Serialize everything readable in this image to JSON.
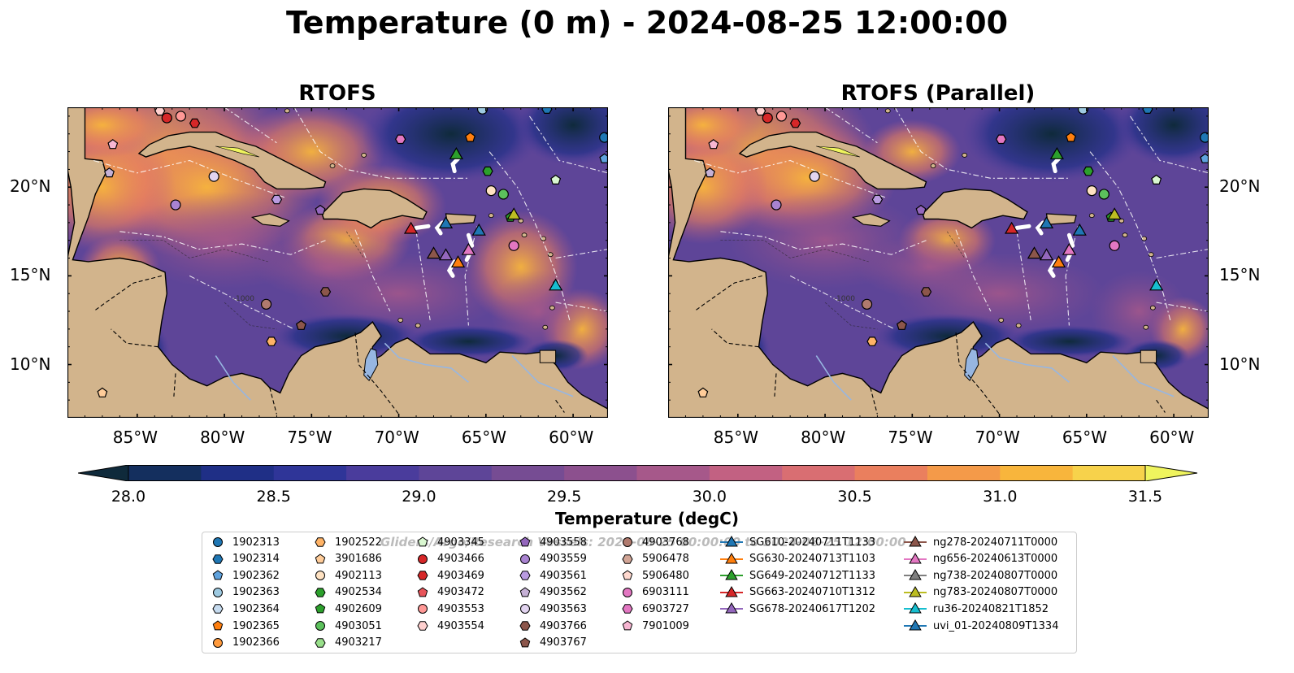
{
  "title": "Temperature (0 m) - 2024-08-25 12:00:00",
  "panels": [
    {
      "title": "RTOFS"
    },
    {
      "title": "RTOFS (Parallel)"
    }
  ],
  "axes": {
    "lon_ticks": [
      "85°W",
      "80°W",
      "75°W",
      "70°W",
      "65°W",
      "60°W"
    ],
    "lat_ticks": [
      "20°N",
      "15°N",
      "10°N"
    ],
    "extent": {
      "lon_min": -89,
      "lon_max": -58,
      "lat_min": 7,
      "lat_max": 24.5
    }
  },
  "colorbar": {
    "label": "Temperature (degC)",
    "ticks": [
      "28.0",
      "28.5",
      "29.0",
      "29.5",
      "30.0",
      "30.5",
      "31.0",
      "31.5"
    ],
    "min": 28.0,
    "max": 31.5,
    "extend": "both",
    "colors": [
      "#0f2a3b",
      "#142f5e",
      "#1f2f86",
      "#2f3598",
      "#4a3c9c",
      "#5e4598",
      "#764c93",
      "#8c508e",
      "#a6588a",
      "#c26182",
      "#d96e72",
      "#ea7f5e",
      "#f49a49",
      "#f8b53c",
      "#f7d24b",
      "#eff45e"
    ],
    "contour_label": "-1000"
  },
  "legend": {
    "watermark": "Gliders/Argo/Research Vessels: 2024-08-25 00:00:00 to 2024-08-25 12:00:00",
    "items": [
      {
        "label": "1902313",
        "marker": "circle",
        "color": "#1f77b4"
      },
      {
        "label": "1902314",
        "marker": "hexagon",
        "color": "#1f77b4"
      },
      {
        "label": "1902362",
        "marker": "pentagon",
        "color": "#5fa2dd"
      },
      {
        "label": "1902363",
        "marker": "circle",
        "color": "#9ecae1"
      },
      {
        "label": "1902364",
        "marker": "hexagon",
        "color": "#c6dbef"
      },
      {
        "label": "1902365",
        "marker": "pentagon",
        "color": "#ff7f0e"
      },
      {
        "label": "1902366",
        "marker": "circle",
        "color": "#ff9a3c"
      },
      {
        "label": "1902522",
        "marker": "hexagon",
        "color": "#ffb366"
      },
      {
        "label": "3901686",
        "marker": "pentagon",
        "color": "#ffcc99"
      },
      {
        "label": "4902113",
        "marker": "circle",
        "color": "#ffe2c2"
      },
      {
        "label": "4902534",
        "marker": "hexagon",
        "color": "#2ca02c"
      },
      {
        "label": "4902609",
        "marker": "pentagon",
        "color": "#2ca02c"
      },
      {
        "label": "4903051",
        "marker": "circle",
        "color": "#5cc15c"
      },
      {
        "label": "4903217",
        "marker": "hexagon",
        "color": "#98df8a"
      },
      {
        "label": "4903345",
        "marker": "pentagon",
        "color": "#d9f7d0"
      },
      {
        "label": "4903466",
        "marker": "circle",
        "color": "#d62728"
      },
      {
        "label": "4903469",
        "marker": "hexagon",
        "color": "#d62728"
      },
      {
        "label": "4903472",
        "marker": "pentagon",
        "color": "#e8555a"
      },
      {
        "label": "4903553",
        "marker": "circle",
        "color": "#ff9896"
      },
      {
        "label": "4903554",
        "marker": "hexagon",
        "color": "#ffd0cf"
      },
      {
        "label": "4903558",
        "marker": "pentagon",
        "color": "#9467bd"
      },
      {
        "label": "4903559",
        "marker": "circle",
        "color": "#a983d1"
      },
      {
        "label": "4903561",
        "marker": "hexagon",
        "color": "#b99be0"
      },
      {
        "label": "4903562",
        "marker": "pentagon",
        "color": "#c5b0d5"
      },
      {
        "label": "4903563",
        "marker": "circle",
        "color": "#e2d4f0"
      },
      {
        "label": "4903766",
        "marker": "hexagon",
        "color": "#8c564b"
      },
      {
        "label": "4903767",
        "marker": "pentagon",
        "color": "#8c564b"
      },
      {
        "label": "4903768",
        "marker": "circle",
        "color": "#b07a6e"
      },
      {
        "label": "5906478",
        "marker": "hexagon",
        "color": "#d2a596"
      },
      {
        "label": "5906480",
        "marker": "pentagon",
        "color": "#ffd9cf"
      },
      {
        "label": "6903111",
        "marker": "circle",
        "color": "#e377c2"
      },
      {
        "label": "6903727",
        "marker": "hexagon",
        "color": "#e377c2"
      },
      {
        "label": "7901009",
        "marker": "pentagon",
        "color": "#f7b6d2"
      },
      {
        "label": "SG610-20240711T1133",
        "marker": "triangle-line",
        "color": "#1f77b4"
      },
      {
        "label": "SG630-20240713T1103",
        "marker": "triangle-line",
        "color": "#ff7f0e"
      },
      {
        "label": "SG649-20240712T1133",
        "marker": "triangle-line",
        "color": "#2ca02c"
      },
      {
        "label": "SG663-20240710T1312",
        "marker": "triangle-line",
        "color": "#d62728"
      },
      {
        "label": "SG678-20240617T1202",
        "marker": "triangle-line",
        "color": "#9467bd"
      },
      {
        "label": "ng278-20240711T0000",
        "marker": "triangle-line",
        "color": "#8c564b"
      },
      {
        "label": "ng656-20240613T0000",
        "marker": "triangle-line",
        "color": "#e377c2"
      },
      {
        "label": "ng738-20240807T0000",
        "marker": "triangle-line",
        "color": "#7f7f7f"
      },
      {
        "label": "ng783-20240807T0000",
        "marker": "triangle-line",
        "color": "#bcbd22"
      },
      {
        "label": "ru36-20240821T1852",
        "marker": "triangle-line",
        "color": "#17becf"
      },
      {
        "label": "uvi_01-20240809T1334",
        "marker": "triangle-line",
        "color": "#1f77b4"
      }
    ]
  },
  "observations": [
    {
      "id": "1902313",
      "lon": -58.2,
      "lat": 22.8
    },
    {
      "id": "1902314",
      "lon": -61.5,
      "lat": 24.4
    },
    {
      "id": "1902362",
      "lon": -58.2,
      "lat": 21.6
    },
    {
      "id": "1902363",
      "lon": -65.2,
      "lat": 24.4
    },
    {
      "id": "1902365",
      "lon": -65.9,
      "lat": 22.8
    },
    {
      "id": "1902522",
      "lon": -77.3,
      "lat": 11.3
    },
    {
      "id": "3901686",
      "lon": -87.0,
      "lat": 8.4
    },
    {
      "id": "4902113",
      "lon": -64.7,
      "lat": 19.8
    },
    {
      "id": "4902534",
      "lon": -64.9,
      "lat": 20.9
    },
    {
      "id": "4902609",
      "lon": -63.6,
      "lat": 18.3
    },
    {
      "id": "4903051",
      "lon": -64.0,
      "lat": 19.6
    },
    {
      "id": "4903345",
      "lon": -61.0,
      "lat": 20.4
    },
    {
      "id": "4903466",
      "lon": -83.3,
      "lat": 23.9
    },
    {
      "id": "4903469",
      "lon": -81.7,
      "lat": 23.6
    },
    {
      "id": "4903553",
      "lon": -82.5,
      "lat": 24.0
    },
    {
      "id": "4903554",
      "lon": -83.7,
      "lat": 24.3
    },
    {
      "id": "4903558",
      "lon": -74.5,
      "lat": 18.7
    },
    {
      "id": "4903559",
      "lon": -82.8,
      "lat": 19.0
    },
    {
      "id": "4903561",
      "lon": -77.0,
      "lat": 19.3
    },
    {
      "id": "4903562",
      "lon": -86.6,
      "lat": 20.8
    },
    {
      "id": "4903563",
      "lon": -80.6,
      "lat": 20.6
    },
    {
      "id": "4903766",
      "lon": -74.2,
      "lat": 14.1
    },
    {
      "id": "4903767",
      "lon": -75.6,
      "lat": 12.2
    },
    {
      "id": "4903768",
      "lon": -77.6,
      "lat": 13.4
    },
    {
      "id": "6903111",
      "lon": -63.4,
      "lat": 16.7
    },
    {
      "id": "6903727",
      "lon": -69.9,
      "lat": 22.7
    },
    {
      "id": "7901009",
      "lon": -86.4,
      "lat": 22.4
    }
  ],
  "glider_positions": [
    {
      "id": "SG610-20240711T1133",
      "lon": -67.3,
      "lat": 17.9
    },
    {
      "id": "SG630-20240713T1103",
      "lon": -66.6,
      "lat": 15.7
    },
    {
      "id": "SG649-20240712T1133",
      "lon": -66.7,
      "lat": 21.8
    },
    {
      "id": "SG663-20240710T1312",
      "lon": -69.3,
      "lat": 17.6
    },
    {
      "id": "SG678-20240617T1202",
      "lon": -67.3,
      "lat": 16.1
    },
    {
      "id": "ng278-20240711T0000",
      "lon": -68.0,
      "lat": 16.2
    },
    {
      "id": "ng656-20240613T0000",
      "lon": -66.0,
      "lat": 16.4
    },
    {
      "id": "ng783-20240807T0000",
      "lon": -63.4,
      "lat": 18.4
    },
    {
      "id": "ru36-20240821T1852",
      "lon": -61.0,
      "lat": 14.4
    },
    {
      "id": "uvi_01-20240809T1334",
      "lon": -65.4,
      "lat": 17.5
    }
  ]
}
